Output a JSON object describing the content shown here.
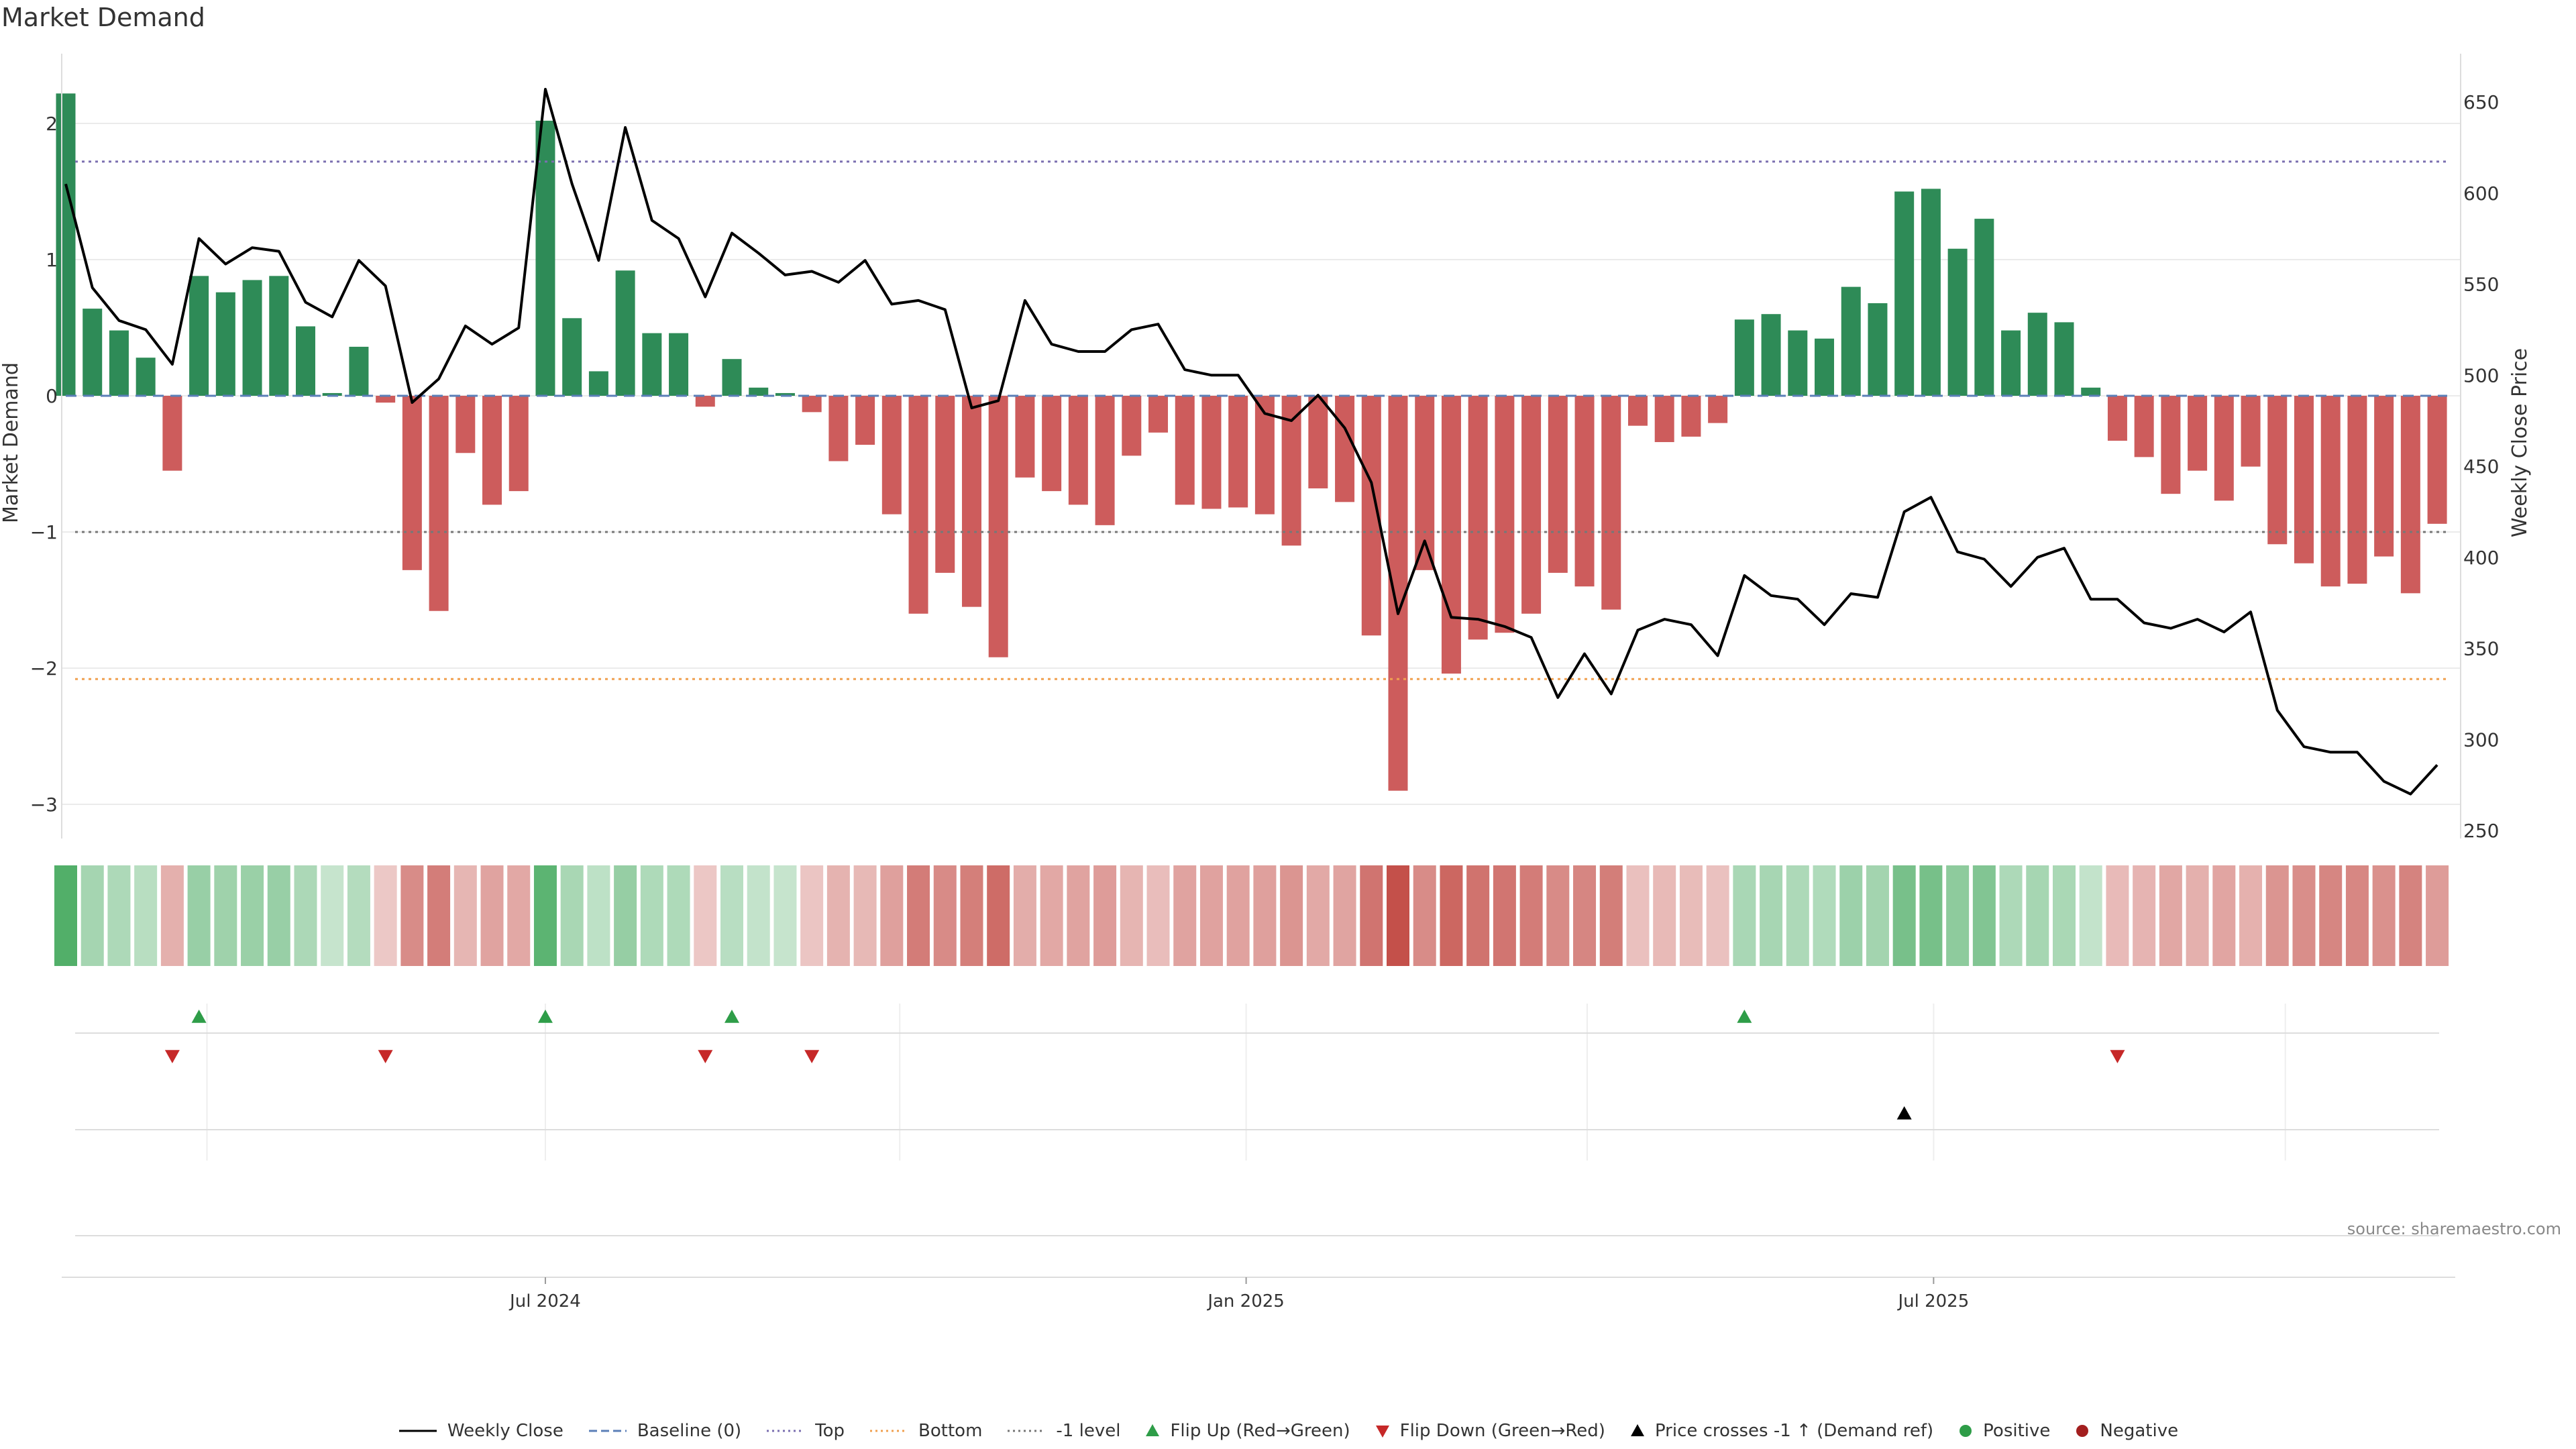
{
  "title": "Market Demand",
  "source": "source: sharemaestro.com",
  "colors": {
    "positive": "#2e8b57",
    "negative": "#cd5c5c",
    "price": "#000000",
    "top": "#7b6fb0",
    "bottom": "#f0a050",
    "minus_one": "#777777",
    "baseline": "#5b7fb8",
    "flip_up": "#2e9d48",
    "flip_down": "#c62828",
    "cross": "#000000",
    "dot_positive": "#2e9d48",
    "dot_negative": "#a31f1f"
  },
  "legend": [
    {
      "label": "Weekly Close",
      "kind": "line-solid",
      "color": "#000000"
    },
    {
      "label": "Baseline (0)",
      "kind": "line-dash",
      "color": "#5b7fb8"
    },
    {
      "label": "Top",
      "kind": "line-dot",
      "color": "#7b6fb0"
    },
    {
      "label": "Bottom",
      "kind": "line-dot",
      "color": "#f0a050"
    },
    {
      "label": "-1 level",
      "kind": "line-dot",
      "color": "#777777"
    },
    {
      "label": "Flip Up (Red→Green)",
      "kind": "tri-up",
      "color": "#2e9d48"
    },
    {
      "label": "Flip Down (Green→Red)",
      "kind": "tri-down",
      "color": "#c62828"
    },
    {
      "label": "Price crosses -1 ↑ (Demand ref)",
      "kind": "tri-up",
      "color": "#000000"
    },
    {
      "label": "Positive",
      "kind": "dot",
      "color": "#2e9d48"
    },
    {
      "label": "Negative",
      "kind": "dot",
      "color": "#a31f1f"
    }
  ],
  "chart_data": {
    "type": "bar",
    "title": "Market Demand",
    "ylabel": "Market Demand",
    "y2label": "Weekly Close Price",
    "ylim": [
      -3.1,
      2.25
    ],
    "y2lim": [
      250,
      660
    ],
    "yticks": [
      2,
      1,
      0,
      -1,
      -2,
      -3
    ],
    "yticks_labels": [
      "2",
      "1",
      "0",
      "−1",
      "−2",
      "−3"
    ],
    "y2ticks": [
      650,
      600,
      550,
      500,
      450,
      400,
      350,
      300,
      250
    ],
    "levels": {
      "top": 1.72,
      "bottom": -2.08,
      "minus_one": -1.0,
      "baseline": 0
    },
    "x_ticks": [
      {
        "label": "Jul 2024",
        "index": 18
      },
      {
        "label": "Jan 2025",
        "index": 44.3
      },
      {
        "label": "Jul 2025",
        "index": 70.1
      }
    ],
    "x_grid_index": [
      5.3,
      31.3,
      57.1,
      83.3
    ],
    "demand": [
      2.22,
      0.64,
      0.48,
      0.28,
      -0.55,
      0.88,
      0.76,
      0.85,
      0.88,
      0.51,
      0.02,
      0.36,
      -0.05,
      -1.28,
      -1.58,
      -0.42,
      -0.8,
      -0.7,
      2.02,
      0.57,
      0.18,
      0.92,
      0.46,
      0.46,
      -0.08,
      0.27,
      0.06,
      0.02,
      -0.12,
      -0.48,
      -0.36,
      -0.87,
      -1.6,
      -1.3,
      -1.55,
      -1.92,
      -0.6,
      -0.7,
      -0.8,
      -0.95,
      -0.44,
      -0.27,
      -0.8,
      -0.83,
      -0.82,
      -0.87,
      -1.1,
      -0.68,
      -0.78,
      -1.76,
      -2.9,
      -1.28,
      -2.04,
      -1.79,
      -1.74,
      -1.6,
      -1.3,
      -1.4,
      -1.57,
      -0.22,
      -0.34,
      -0.3,
      -0.2,
      0.56,
      0.6,
      0.48,
      0.42,
      0.8,
      0.68,
      1.5,
      1.52,
      1.08,
      1.3,
      0.48,
      0.61,
      0.54,
      0.06,
      -0.33,
      -0.45,
      -0.72,
      -0.55,
      -0.77,
      -0.52,
      -1.09,
      -1.23,
      -1.4,
      -1.38,
      -1.18,
      -1.45,
      -0.94
    ],
    "price": [
      605,
      548,
      530,
      525,
      506,
      575,
      561,
      570,
      568,
      540,
      532,
      563,
      549,
      485,
      498,
      527,
      517,
      526,
      657,
      605,
      563,
      636,
      585,
      575,
      543,
      578,
      567,
      555,
      557,
      551,
      563,
      539,
      541,
      536,
      482,
      486,
      541,
      517,
      513,
      513,
      525,
      528,
      503,
      500,
      500,
      479,
      475,
      489,
      471,
      441,
      369,
      409,
      367,
      366,
      362,
      356,
      323,
      347,
      325,
      360,
      366,
      363,
      346,
      390,
      379,
      377,
      363,
      380,
      378,
      425,
      433,
      403,
      399,
      384,
      400,
      405,
      377,
      377,
      364,
      361,
      366,
      359,
      370,
      316,
      296,
      293,
      293,
      277,
      270,
      286
    ],
    "flips_up": [
      5,
      18,
      25,
      63
    ],
    "flips_down": [
      4,
      12,
      24,
      28,
      77
    ],
    "price_crosses": [
      69
    ]
  }
}
